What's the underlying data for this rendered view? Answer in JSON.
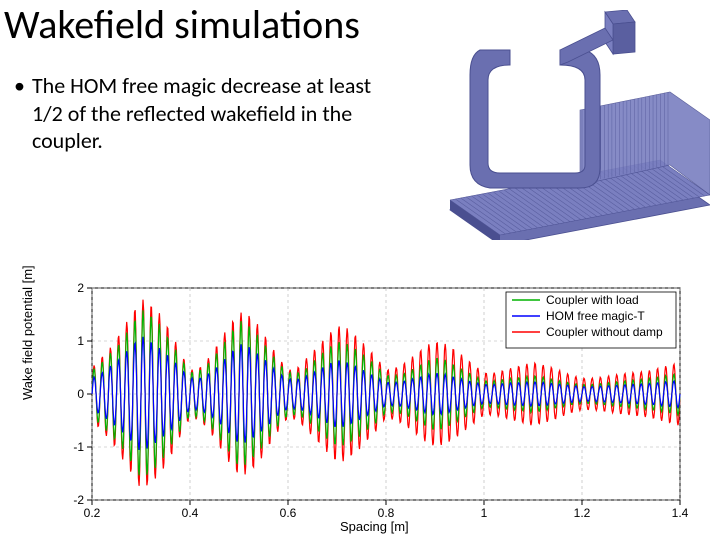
{
  "title": "Wakefield simulations",
  "bullet": "The HOM free magic decrease at least 1/2 of the reflected wakefield in the coupler.",
  "coupler_3d": {
    "body_color": "#6a6fb0",
    "grid_color": "#5a5fa0",
    "edge_color": "#4a4f90"
  },
  "chart": {
    "type": "line",
    "xlabel": "Spacing [m]",
    "ylabel": "Wake field potential [m]",
    "label_fontsize": 13,
    "tick_fontsize": 12,
    "xlim": [
      0.2,
      1.4
    ],
    "ylim": [
      -2,
      2
    ],
    "xticks": [
      0.2,
      0.4,
      0.6,
      0.8,
      1,
      1.2,
      1.4
    ],
    "yticks": [
      -2,
      -1,
      0,
      1,
      2
    ],
    "grid_color": "#b0b0b0",
    "grid_dash": "3,3",
    "axis_color": "#000000",
    "background_color": "#ffffff",
    "legend": {
      "position": "top-right",
      "box_color": "#000000",
      "bg": "#ffffff",
      "entries": [
        {
          "label": "Coupler with load",
          "color": "#00b400"
        },
        {
          "label": "HOM free magic-T",
          "color": "#0000ff"
        },
        {
          "label": "Coupler without damp",
          "color": "#ff0000"
        }
      ]
    },
    "series": [
      {
        "name": "Coupler without damp",
        "color": "#ff0000",
        "linewidth": 1.2,
        "envelope": [
          [
            0.2,
            0.5
          ],
          [
            0.22,
            0.7
          ],
          [
            0.24,
            0.9
          ],
          [
            0.26,
            1.2
          ],
          [
            0.28,
            1.5
          ],
          [
            0.3,
            1.8
          ],
          [
            0.32,
            1.7
          ],
          [
            0.34,
            1.5
          ],
          [
            0.36,
            1.2
          ],
          [
            0.38,
            0.8
          ],
          [
            0.4,
            0.45
          ],
          [
            0.42,
            0.5
          ],
          [
            0.44,
            0.7
          ],
          [
            0.46,
            1.0
          ],
          [
            0.48,
            1.3
          ],
          [
            0.5,
            1.55
          ],
          [
            0.52,
            1.5
          ],
          [
            0.54,
            1.3
          ],
          [
            0.56,
            1.0
          ],
          [
            0.58,
            0.7
          ],
          [
            0.6,
            0.45
          ],
          [
            0.62,
            0.5
          ],
          [
            0.64,
            0.7
          ],
          [
            0.66,
            0.9
          ],
          [
            0.68,
            1.1
          ],
          [
            0.7,
            1.3
          ],
          [
            0.72,
            1.25
          ],
          [
            0.74,
            1.1
          ],
          [
            0.76,
            0.9
          ],
          [
            0.78,
            0.7
          ],
          [
            0.8,
            0.45
          ],
          [
            0.82,
            0.5
          ],
          [
            0.84,
            0.6
          ],
          [
            0.86,
            0.75
          ],
          [
            0.88,
            0.9
          ],
          [
            0.9,
            1.0
          ],
          [
            0.92,
            0.95
          ],
          [
            0.94,
            0.85
          ],
          [
            0.96,
            0.7
          ],
          [
            0.98,
            0.55
          ],
          [
            1.0,
            0.4
          ],
          [
            1.02,
            0.4
          ],
          [
            1.04,
            0.45
          ],
          [
            1.06,
            0.5
          ],
          [
            1.08,
            0.55
          ],
          [
            1.1,
            0.6
          ],
          [
            1.12,
            0.55
          ],
          [
            1.14,
            0.5
          ],
          [
            1.16,
            0.42
          ],
          [
            1.18,
            0.35
          ],
          [
            1.2,
            0.3
          ],
          [
            1.22,
            0.3
          ],
          [
            1.24,
            0.32
          ],
          [
            1.26,
            0.35
          ],
          [
            1.28,
            0.38
          ],
          [
            1.3,
            0.4
          ],
          [
            1.32,
            0.42
          ],
          [
            1.34,
            0.45
          ],
          [
            1.36,
            0.5
          ],
          [
            1.38,
            0.55
          ],
          [
            1.4,
            0.6
          ]
        ],
        "carrier_periods": 72
      },
      {
        "name": "Coupler with load",
        "color": "#00b400",
        "linewidth": 1.2,
        "envelope": [
          [
            0.2,
            0.45
          ],
          [
            0.22,
            0.6
          ],
          [
            0.24,
            0.8
          ],
          [
            0.26,
            1.0
          ],
          [
            0.28,
            1.3
          ],
          [
            0.3,
            1.6
          ],
          [
            0.32,
            1.5
          ],
          [
            0.34,
            1.3
          ],
          [
            0.36,
            1.0
          ],
          [
            0.38,
            0.7
          ],
          [
            0.4,
            0.4
          ],
          [
            0.42,
            0.45
          ],
          [
            0.44,
            0.6
          ],
          [
            0.46,
            0.85
          ],
          [
            0.48,
            1.1
          ],
          [
            0.5,
            1.4
          ],
          [
            0.52,
            1.3
          ],
          [
            0.54,
            1.1
          ],
          [
            0.56,
            0.85
          ],
          [
            0.58,
            0.6
          ],
          [
            0.6,
            0.4
          ],
          [
            0.62,
            0.4
          ],
          [
            0.64,
            0.5
          ],
          [
            0.66,
            0.7
          ],
          [
            0.68,
            0.85
          ],
          [
            0.7,
            1.0
          ],
          [
            0.72,
            0.95
          ],
          [
            0.74,
            0.85
          ],
          [
            0.76,
            0.7
          ],
          [
            0.78,
            0.55
          ],
          [
            0.8,
            0.35
          ],
          [
            0.82,
            0.35
          ],
          [
            0.84,
            0.4
          ],
          [
            0.86,
            0.5
          ],
          [
            0.88,
            0.6
          ],
          [
            0.9,
            0.7
          ],
          [
            0.92,
            0.65
          ],
          [
            0.94,
            0.55
          ],
          [
            0.96,
            0.45
          ],
          [
            0.98,
            0.35
          ],
          [
            1.0,
            0.25
          ],
          [
            1.02,
            0.25
          ],
          [
            1.04,
            0.28
          ],
          [
            1.06,
            0.3
          ],
          [
            1.08,
            0.32
          ],
          [
            1.1,
            0.35
          ],
          [
            1.12,
            0.32
          ],
          [
            1.14,
            0.28
          ],
          [
            1.16,
            0.24
          ],
          [
            1.18,
            0.2
          ],
          [
            1.2,
            0.18
          ],
          [
            1.22,
            0.18
          ],
          [
            1.24,
            0.2
          ],
          [
            1.26,
            0.22
          ],
          [
            1.28,
            0.24
          ],
          [
            1.3,
            0.26
          ],
          [
            1.32,
            0.28
          ],
          [
            1.34,
            0.3
          ],
          [
            1.36,
            0.33
          ],
          [
            1.38,
            0.36
          ],
          [
            1.4,
            0.4
          ]
        ],
        "carrier_periods": 72
      },
      {
        "name": "HOM free magic-T",
        "color": "#0000ff",
        "linewidth": 1.2,
        "envelope": [
          [
            0.2,
            0.3
          ],
          [
            0.22,
            0.4
          ],
          [
            0.24,
            0.55
          ],
          [
            0.26,
            0.7
          ],
          [
            0.28,
            0.9
          ],
          [
            0.3,
            1.1
          ],
          [
            0.32,
            1.0
          ],
          [
            0.34,
            0.85
          ],
          [
            0.36,
            0.7
          ],
          [
            0.38,
            0.5
          ],
          [
            0.4,
            0.3
          ],
          [
            0.42,
            0.3
          ],
          [
            0.44,
            0.4
          ],
          [
            0.46,
            0.55
          ],
          [
            0.48,
            0.75
          ],
          [
            0.5,
            0.95
          ],
          [
            0.52,
            0.9
          ],
          [
            0.54,
            0.75
          ],
          [
            0.56,
            0.6
          ],
          [
            0.58,
            0.4
          ],
          [
            0.6,
            0.28
          ],
          [
            0.62,
            0.28
          ],
          [
            0.64,
            0.35
          ],
          [
            0.66,
            0.45
          ],
          [
            0.68,
            0.55
          ],
          [
            0.7,
            0.65
          ],
          [
            0.72,
            0.6
          ],
          [
            0.74,
            0.52
          ],
          [
            0.76,
            0.42
          ],
          [
            0.78,
            0.32
          ],
          [
            0.8,
            0.22
          ],
          [
            0.82,
            0.22
          ],
          [
            0.84,
            0.25
          ],
          [
            0.86,
            0.3
          ],
          [
            0.88,
            0.35
          ],
          [
            0.9,
            0.4
          ],
          [
            0.92,
            0.37
          ],
          [
            0.94,
            0.32
          ],
          [
            0.96,
            0.27
          ],
          [
            0.98,
            0.22
          ],
          [
            1.0,
            0.18
          ],
          [
            1.02,
            0.18
          ],
          [
            1.04,
            0.2
          ],
          [
            1.06,
            0.21
          ],
          [
            1.08,
            0.22
          ],
          [
            1.1,
            0.23
          ],
          [
            1.12,
            0.22
          ],
          [
            1.14,
            0.2
          ],
          [
            1.16,
            0.18
          ],
          [
            1.18,
            0.16
          ],
          [
            1.2,
            0.14
          ],
          [
            1.22,
            0.14
          ],
          [
            1.24,
            0.15
          ],
          [
            1.26,
            0.16
          ],
          [
            1.28,
            0.17
          ],
          [
            1.3,
            0.18
          ],
          [
            1.32,
            0.19
          ],
          [
            1.34,
            0.2
          ],
          [
            1.36,
            0.22
          ],
          [
            1.38,
            0.24
          ],
          [
            1.4,
            0.26
          ]
        ],
        "carrier_periods": 72
      }
    ]
  }
}
